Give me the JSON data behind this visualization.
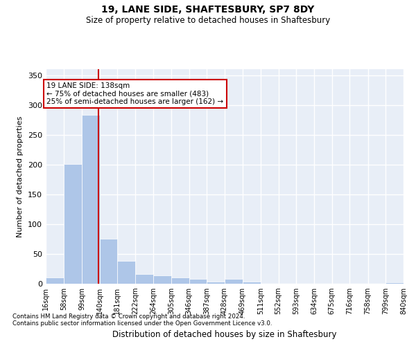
{
  "title": "19, LANE SIDE, SHAFTESBURY, SP7 8DY",
  "subtitle": "Size of property relative to detached houses in Shaftesbury",
  "xlabel": "Distribution of detached houses by size in Shaftesbury",
  "ylabel": "Number of detached properties",
  "property_size": 138,
  "annotation_line1": "19 LANE SIDE: 138sqm",
  "annotation_line2": "← 75% of detached houses are smaller (483)",
  "annotation_line3": "25% of semi-detached houses are larger (162) →",
  "footer_line1": "Contains HM Land Registry data © Crown copyright and database right 2024.",
  "footer_line2": "Contains public sector information licensed under the Open Government Licence v3.0.",
  "bar_color": "#aec6e8",
  "vline_color": "#cc0000",
  "background_color": "#e8eef7",
  "grid_color": "#ffffff",
  "bins": [
    16,
    58,
    99,
    140,
    181,
    222,
    264,
    305,
    346,
    387,
    428,
    469,
    511,
    552,
    593,
    634,
    675,
    716,
    758,
    799,
    840
  ],
  "counts": [
    11,
    201,
    283,
    75,
    38,
    16,
    14,
    11,
    8,
    3,
    8,
    3,
    0,
    0,
    0,
    0,
    0,
    0,
    0,
    2
  ],
  "ylim": [
    0,
    360
  ],
  "yticks": [
    0,
    50,
    100,
    150,
    200,
    250,
    300,
    350
  ]
}
